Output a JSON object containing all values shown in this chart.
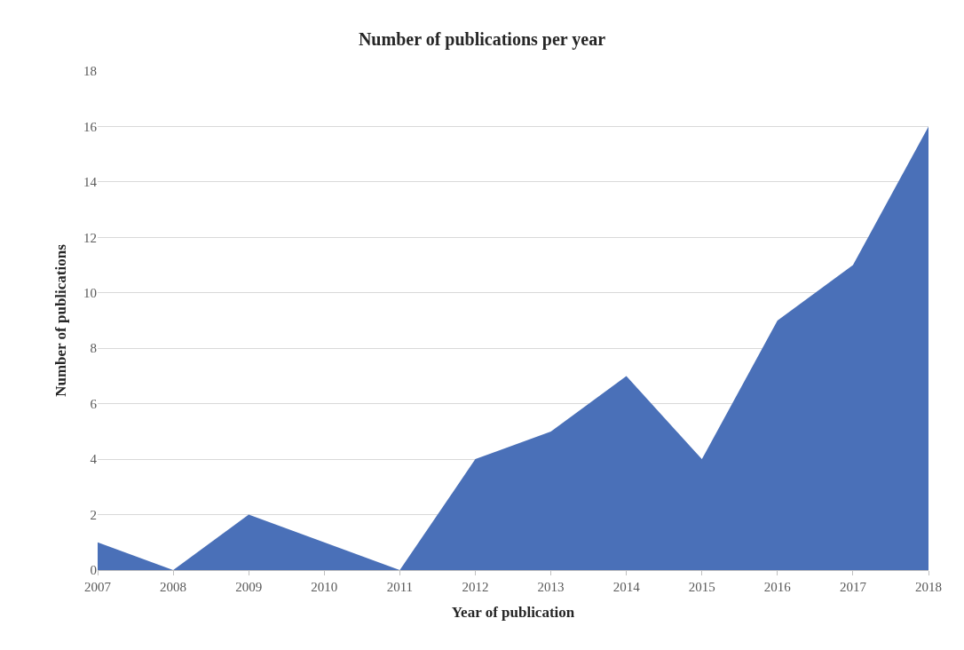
{
  "chart_data": {
    "type": "area",
    "title": "Number of publications per year",
    "xlabel": "Year of publication",
    "ylabel": "Number of publications",
    "categories": [
      "2007",
      "2008",
      "2009",
      "2010",
      "2011",
      "2012",
      "2013",
      "2014",
      "2015",
      "2016",
      "2017",
      "2018"
    ],
    "series": [
      {
        "color": "#4a70b8",
        "values": [
          1,
          0,
          2,
          1,
          0,
          4,
          5,
          7,
          4,
          9,
          11,
          16
        ]
      }
    ],
    "ylim": [
      0,
      18
    ],
    "yticks": [
      0,
      2,
      4,
      6,
      8,
      10,
      12,
      14,
      16,
      18
    ],
    "grid": "y"
  }
}
